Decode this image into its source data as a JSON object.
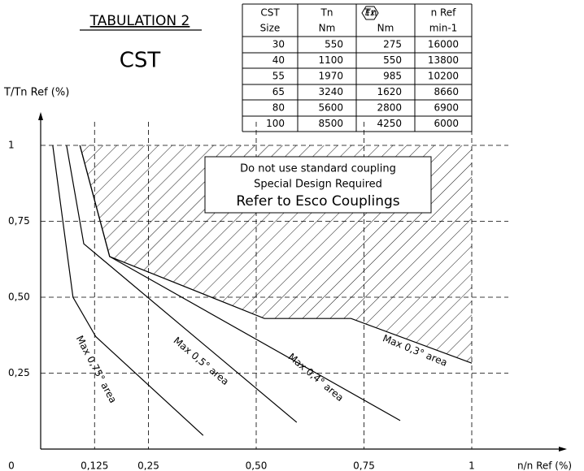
{
  "title": "TABULATION 2",
  "subtitle": "CST",
  "table": {
    "header": [
      [
        "CST",
        "Size"
      ],
      [
        "Tn",
        "Nm"
      ],
      [
        "Tn",
        "Nm"
      ],
      [
        "n Ref",
        "min-1"
      ]
    ],
    "ex_symbol": "Ex",
    "rows": [
      [
        30,
        550,
        275,
        16000
      ],
      [
        40,
        1100,
        550,
        13800
      ],
      [
        55,
        1970,
        985,
        10200
      ],
      [
        65,
        3240,
        1620,
        8660
      ],
      [
        80,
        5600,
        2800,
        6900
      ],
      [
        100,
        8500,
        4250,
        6000
      ]
    ]
  },
  "chart_data": {
    "type": "line",
    "ylabel": "T/Tn Ref (%)",
    "xlabel": "n/n Ref (%)",
    "xlim": [
      0,
      1.22
    ],
    "ylim": [
      0,
      1.1
    ],
    "xticks": [
      {
        "value": 0,
        "label": "0"
      },
      {
        "value": 0.125,
        "label": "0,125"
      },
      {
        "value": 0.25,
        "label": "0,25"
      },
      {
        "value": 0.5,
        "label": "0,50"
      },
      {
        "value": 0.75,
        "label": "0,75"
      },
      1
    ],
    "yticks": [
      {
        "value": 0.25,
        "label": "0,25"
      },
      {
        "value": 0.5,
        "label": "0,50"
      },
      {
        "value": 0.75,
        "label": "0,75"
      },
      1
    ],
    "grid": true,
    "color": "#000000",
    "series": [
      {
        "name": "Max 0,75° area",
        "x": [
          0.028,
          0.075,
          0.128,
          0.377
        ],
        "values": [
          1,
          0.5,
          0.37,
          0.045
        ]
      },
      {
        "name": "Max 0,5° area",
        "x": [
          0.06,
          0.1,
          0.594
        ],
        "values": [
          1,
          0.676,
          0.088
        ]
      },
      {
        "name": "Max 0,4° area",
        "x": [
          0.091,
          0.16,
          0.834
        ],
        "values": [
          1,
          0.634,
          0.094
        ]
      },
      {
        "name": "Max 0,3° area",
        "x": [
          0.091,
          0.16,
          0.519,
          0.72,
          1
        ],
        "values": [
          1,
          0.634,
          0.43,
          0.43,
          0.283
        ],
        "hatch": true
      }
    ],
    "region_text": [
      "Do not use standard coupling",
      "Special Design Required",
      "Refer to Esco Couplings"
    ]
  }
}
